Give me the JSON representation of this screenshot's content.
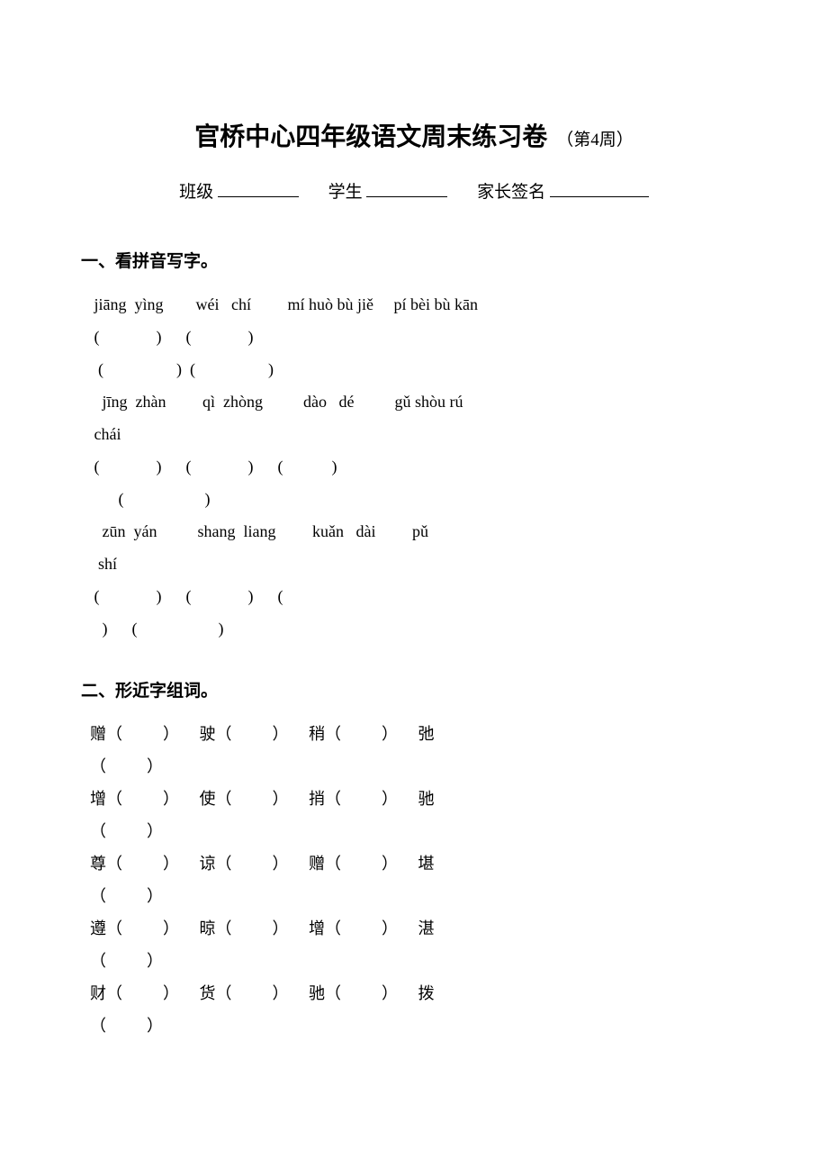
{
  "title": {
    "main": "官桥中心四年级语文周末练习卷",
    "sub": "（第4周）"
  },
  "info": {
    "class_label": "班级",
    "student_label": "学生",
    "parent_label": "家长签名",
    "blank_widths": {
      "class": 90,
      "student": 90,
      "parent": 110
    }
  },
  "sections": {
    "s1": {
      "heading": "一、看拼音写字。",
      "rows": [
        {
          "type": "pinyin",
          "text": " jiāng  yìng        wéi   chí         mí huò bù jiě     pí bèi bù kān"
        },
        {
          "type": "paren",
          "text": " (              )      (              )"
        },
        {
          "type": "paren",
          "text": "  (                  )  (                  )"
        },
        {
          "type": "pinyin",
          "text": "   jīng  zhàn         qì  zhòng          dào   dé          gǔ shòu rú"
        },
        {
          "type": "pinyin",
          "text": " chái"
        },
        {
          "type": "paren",
          "text": " (              )      (              )      (            )"
        },
        {
          "type": "paren",
          "text": "       (                    )"
        },
        {
          "type": "pinyin",
          "text": "   zūn  yán          shang  liang         kuǎn   dài         pǔ"
        },
        {
          "type": "pinyin",
          "text": "  shí"
        },
        {
          "type": "paren",
          "text": " (              )      (              )      ("
        },
        {
          "type": "paren",
          "text": "   )      (                    )"
        }
      ]
    },
    "s2": {
      "heading": "二、形近字组词。",
      "rows": [
        {
          "type": "char",
          "text": "赠（          ）     驶（          ）     稍（          ）     弛"
        },
        {
          "type": "char",
          "text": "（          ）"
        },
        {
          "type": "char",
          "text": "增（          ）     使（          ）     捎（          ）     驰"
        },
        {
          "type": "char",
          "text": "（          ）"
        },
        {
          "type": "char",
          "text": "尊（          ）     谅（          ）     赠（          ）     堪"
        },
        {
          "type": "char",
          "text": "（          ）"
        },
        {
          "type": "char",
          "text": "遵（          ）     晾（          ）     增（          ）     湛"
        },
        {
          "type": "char",
          "text": "（          ）"
        },
        {
          "type": "char",
          "text": "财（          ）     货（          ）     驰（          ）     拨"
        },
        {
          "type": "char",
          "text": "（          ）"
        }
      ]
    }
  }
}
